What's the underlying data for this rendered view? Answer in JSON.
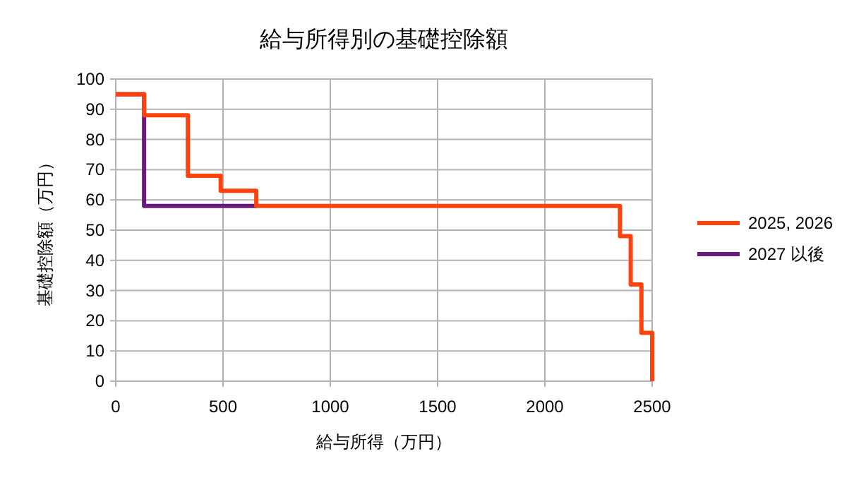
{
  "chart_data": {
    "type": "step",
    "title": "給与所得別の基礎控除額",
    "xlabel": "給与所得（万円）",
    "ylabel": "基礎控除額（万円）",
    "xlim": [
      0,
      2500
    ],
    "xticks": [
      0,
      500,
      1000,
      1500,
      2000,
      2500
    ],
    "ylim": [
      0,
      100
    ],
    "yticks": [
      0,
      10,
      20,
      30,
      40,
      50,
      60,
      70,
      80,
      90,
      100
    ],
    "grid": true,
    "legend": "right",
    "line_style": "solid",
    "marker": "none",
    "series": [
      {
        "name": "2025, 2026",
        "color": "#ff420e",
        "x": [
          0,
          132,
          336,
          489,
          655,
          2350,
          2400,
          2450,
          2500
        ],
        "values": [
          95,
          88,
          68,
          63,
          58,
          48,
          32,
          16,
          0
        ]
      },
      {
        "name": "2027 以後",
        "color": "#6a1b7e",
        "x": [
          0,
          132,
          655
        ],
        "values": [
          95,
          58,
          58
        ]
      }
    ]
  }
}
